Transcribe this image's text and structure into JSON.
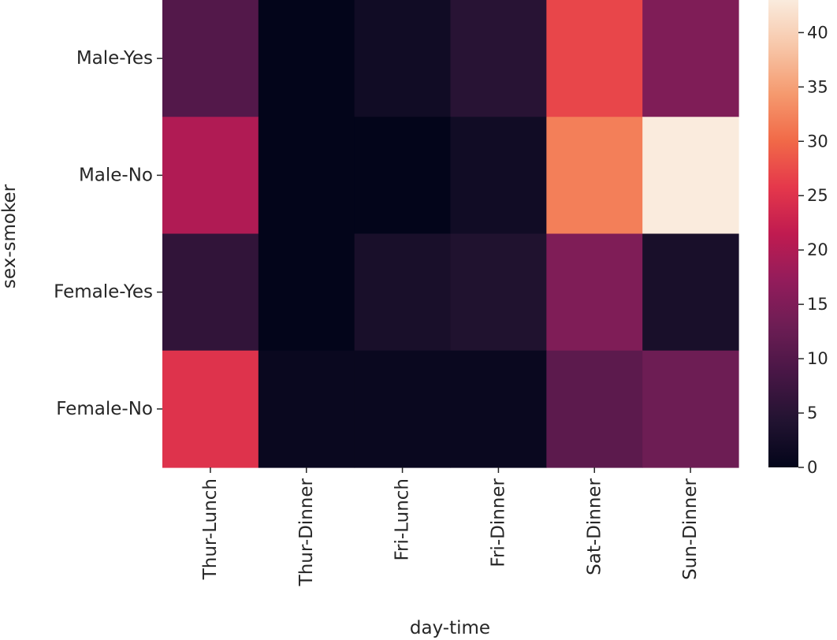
{
  "chart_data": {
    "type": "heatmap",
    "title": "",
    "xlabel": "day-time",
    "ylabel": "sex-smoker",
    "x_categories": [
      "Thur-Lunch",
      "Thur-Dinner",
      "Fri-Lunch",
      "Fri-Dinner",
      "Sat-Dinner",
      "Sun-Dinner"
    ],
    "y_categories": [
      "Male-Yes",
      "Male-No",
      "Female-Yes",
      "Female-No"
    ],
    "values": [
      [
        10,
        0,
        2,
        5,
        27,
        15
      ],
      [
        20,
        0,
        0,
        2,
        32,
        43
      ],
      [
        6,
        0,
        3,
        4,
        15,
        3
      ],
      [
        25,
        1,
        1,
        1,
        11,
        13
      ]
    ],
    "colorbar": {
      "colormap": "rocket",
      "vmin": 0,
      "vmax": 43,
      "ticks": [
        0,
        5,
        10,
        15,
        20,
        25,
        30,
        35,
        40
      ]
    }
  }
}
